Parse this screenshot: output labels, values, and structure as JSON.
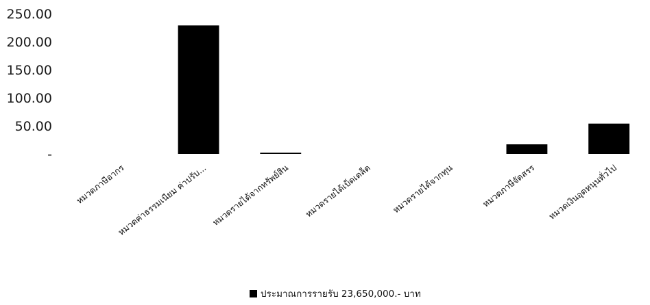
{
  "chart_data": {
    "type": "bar",
    "categories": [
      "หมวดภาษีอากร",
      "หมวดค่าธรรมเนียม ค่าปรับ...",
      "หมวดรายได้จากทรัพย์สิน",
      "หมวดรายได้เบ็ดเตล็ด",
      "หมวดรายได้จากทุน",
      "หมวดภาษีจัดสรร",
      "หมวดเงินอุดหนุนทั่วไป"
    ],
    "series": [
      {
        "name": "ประมาณการรายรับ 23,650,000.- บาท",
        "values": [
          0,
          229,
          2,
          0,
          0,
          17,
          54
        ]
      }
    ],
    "ylim": [
      0,
      250
    ],
    "yticks": [
      0,
      50,
      100,
      150,
      200,
      250
    ],
    "ytick_labels": [
      "-",
      "50.00",
      "100.00",
      "150.00",
      "200.00",
      "250.00"
    ],
    "title": "",
    "xlabel": "",
    "ylabel": "",
    "grid": false,
    "legend_position": "bottom",
    "colors": {
      "bar": "#000000",
      "text": "#111111"
    }
  }
}
